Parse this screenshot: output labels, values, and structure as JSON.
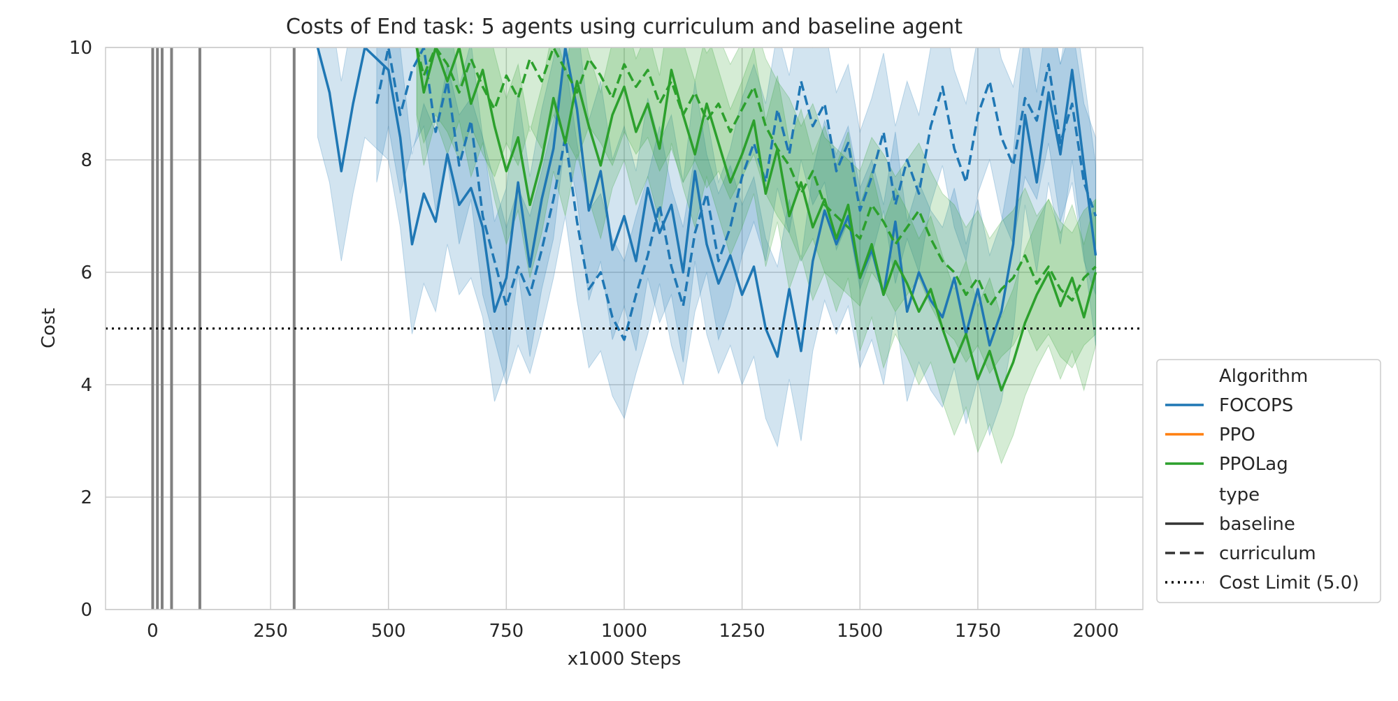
{
  "chart_data": {
    "type": "line",
    "title": "Costs of End task: 5 agents using curriculum and baseline agent",
    "xlabel": "x1000 Steps",
    "ylabel": "Cost",
    "xlim": [
      -100,
      2100
    ],
    "ylim": [
      0,
      10
    ],
    "xticks": [
      "0",
      "250",
      "500",
      "750",
      "1000",
      "1250",
      "1500",
      "1750",
      "2000"
    ],
    "xtick_values": [
      0,
      250,
      500,
      750,
      1000,
      1250,
      1500,
      1750,
      2000
    ],
    "yticks": [
      "0",
      "2",
      "4",
      "6",
      "8",
      "10"
    ],
    "ytick_values": [
      0,
      2,
      4,
      6,
      8,
      10
    ],
    "grid": true,
    "legend_position": "right-bottom, outside",
    "legend": {
      "hue_title": "Algorithm",
      "style_title": "type",
      "items": [
        {
          "label": "FOCOPS",
          "color": "#1f77b4",
          "dash": "solid"
        },
        {
          "label": "PPO",
          "color": "#ff7f0e",
          "dash": "solid"
        },
        {
          "label": "PPOLag",
          "color": "#2ca02c",
          "dash": "solid"
        },
        {
          "label": "baseline",
          "color": "#333333",
          "dash": "solid"
        },
        {
          "label": "curriculum",
          "color": "#333333",
          "dash": "dashed"
        },
        {
          "label": "Cost Limit (5.0)",
          "color": "#000000",
          "dash": "dotted"
        }
      ]
    },
    "cost_limit": 5.0,
    "curriculum_switch_markers": [
      0,
      10,
      20,
      40,
      100,
      300
    ],
    "series": [
      {
        "name": "FOCOPS",
        "type_style": "baseline",
        "color": "#1f77b4",
        "dash": "solid",
        "band": 1.6,
        "x": [
          350,
          375,
          400,
          425,
          450,
          500,
          525,
          550,
          575,
          600,
          625,
          650,
          675,
          700,
          725,
          750,
          775,
          800,
          825,
          850,
          875,
          900,
          925,
          950,
          975,
          1000,
          1025,
          1050,
          1075,
          1100,
          1125,
          1150,
          1175,
          1200,
          1225,
          1250,
          1275,
          1300,
          1325,
          1350,
          1375,
          1400,
          1425,
          1450,
          1475,
          1500,
          1525,
          1550,
          1575,
          1600,
          1625,
          1650,
          1675,
          1700,
          1725,
          1750,
          1775,
          1800,
          1825,
          1850,
          1875,
          1900,
          1925,
          1950,
          1975,
          2000
        ],
        "y": [
          10,
          9.2,
          7.8,
          9.0,
          10,
          9.6,
          8.4,
          6.5,
          7.4,
          6.9,
          8.1,
          7.2,
          7.5,
          6.8,
          5.3,
          5.9,
          7.6,
          6.1,
          7.3,
          8.2,
          10,
          8.9,
          7.1,
          7.8,
          6.4,
          7.0,
          6.2,
          7.5,
          6.7,
          7.2,
          6.0,
          7.8,
          6.5,
          5.8,
          6.3,
          5.6,
          6.1,
          5.0,
          4.5,
          5.7,
          4.6,
          6.2,
          7.1,
          6.5,
          7.0,
          5.9,
          6.4,
          5.6,
          6.9,
          5.3,
          6.0,
          5.5,
          5.2,
          5.9,
          4.9,
          5.7,
          4.7,
          5.3,
          6.5,
          8.8,
          7.6,
          9.2,
          8.1,
          9.6,
          7.9,
          6.3
        ]
      },
      {
        "name": "FOCOPS",
        "type_style": "curriculum",
        "color": "#1f77b4",
        "dash": "dashed",
        "band": 1.4,
        "x": [
          475,
          500,
          525,
          550,
          575,
          600,
          625,
          650,
          675,
          700,
          725,
          750,
          775,
          800,
          825,
          850,
          875,
          900,
          925,
          950,
          975,
          1000,
          1025,
          1050,
          1075,
          1100,
          1125,
          1150,
          1175,
          1200,
          1225,
          1250,
          1275,
          1300,
          1325,
          1350,
          1375,
          1400,
          1425,
          1450,
          1475,
          1500,
          1525,
          1550,
          1575,
          1600,
          1625,
          1650,
          1675,
          1700,
          1725,
          1750,
          1775,
          1800,
          1825,
          1850,
          1875,
          1900,
          1925,
          1950,
          1975,
          2000
        ],
        "y": [
          9.0,
          10,
          8.8,
          9.6,
          10,
          8.5,
          9.4,
          7.9,
          8.7,
          7.0,
          6.2,
          5.4,
          6.1,
          5.6,
          6.4,
          7.3,
          8.4,
          6.9,
          5.7,
          6.0,
          5.2,
          4.8,
          5.6,
          6.3,
          7.2,
          6.1,
          5.4,
          6.7,
          7.4,
          6.2,
          6.8,
          7.7,
          8.3,
          7.6,
          8.9,
          8.1,
          9.4,
          8.6,
          9.0,
          7.8,
          8.3,
          7.1,
          7.7,
          8.5,
          7.2,
          8.0,
          7.4,
          8.6,
          9.3,
          8.2,
          7.6,
          8.8,
          9.4,
          8.4,
          7.9,
          9.1,
          8.7,
          9.7,
          8.3,
          9.0,
          7.6,
          7.0
        ]
      },
      {
        "name": "PPOLag",
        "type_style": "baseline",
        "color": "#2ca02c",
        "dash": "solid",
        "band": 1.3,
        "x": [
          560,
          575,
          600,
          625,
          650,
          675,
          700,
          725,
          750,
          775,
          800,
          825,
          850,
          875,
          900,
          925,
          950,
          975,
          1000,
          1025,
          1050,
          1075,
          1100,
          1125,
          1150,
          1175,
          1200,
          1225,
          1250,
          1275,
          1300,
          1325,
          1350,
          1375,
          1400,
          1425,
          1450,
          1475,
          1500,
          1525,
          1550,
          1575,
          1600,
          1625,
          1650,
          1675,
          1700,
          1725,
          1750,
          1775,
          1800,
          1825,
          1850,
          1875,
          1900,
          1925,
          1950,
          1975,
          2000
        ],
        "y": [
          10,
          9.2,
          10,
          9.4,
          10,
          9.0,
          9.6,
          8.6,
          7.8,
          8.4,
          7.2,
          8.0,
          9.1,
          8.3,
          9.4,
          8.6,
          7.9,
          8.8,
          9.3,
          8.5,
          9.0,
          8.2,
          9.6,
          8.8,
          8.1,
          9.0,
          8.3,
          7.6,
          8.1,
          8.7,
          7.4,
          8.2,
          7.0,
          7.6,
          6.8,
          7.3,
          6.6,
          7.2,
          5.9,
          6.5,
          5.6,
          6.2,
          5.8,
          5.3,
          5.7,
          5.0,
          4.4,
          4.9,
          4.1,
          4.6,
          3.9,
          4.4,
          5.1,
          5.6,
          6.0,
          5.4,
          5.9,
          5.2,
          6.0
        ]
      },
      {
        "name": "PPOLag",
        "type_style": "curriculum",
        "color": "#2ca02c",
        "dash": "dashed",
        "band": 1.2,
        "x": [
          560,
          575,
          600,
          625,
          650,
          675,
          700,
          725,
          750,
          775,
          800,
          825,
          850,
          875,
          900,
          925,
          950,
          975,
          1000,
          1025,
          1050,
          1075,
          1100,
          1125,
          1150,
          1175,
          1200,
          1225,
          1250,
          1275,
          1300,
          1325,
          1350,
          1375,
          1400,
          1425,
          1450,
          1475,
          1500,
          1525,
          1550,
          1575,
          1600,
          1625,
          1650,
          1675,
          1700,
          1725,
          1750,
          1775,
          1800,
          1825,
          1850,
          1875,
          1900,
          1925,
          1950,
          1975,
          2000
        ],
        "y": [
          10,
          9.5,
          10,
          9.7,
          9.2,
          9.8,
          9.3,
          8.9,
          9.5,
          9.1,
          9.8,
          9.4,
          10,
          9.6,
          9.2,
          9.8,
          9.5,
          9.1,
          9.7,
          9.3,
          9.6,
          9.0,
          9.4,
          8.8,
          9.2,
          8.7,
          9.0,
          8.5,
          8.9,
          9.3,
          8.6,
          8.2,
          7.9,
          7.4,
          7.8,
          7.2,
          7.0,
          6.8,
          6.6,
          7.2,
          6.9,
          6.5,
          6.8,
          7.1,
          6.6,
          6.2,
          6.0,
          5.6,
          5.9,
          5.4,
          5.7,
          5.9,
          6.3,
          5.8,
          6.1,
          5.7,
          5.5,
          5.9,
          6.1
        ]
      }
    ]
  }
}
